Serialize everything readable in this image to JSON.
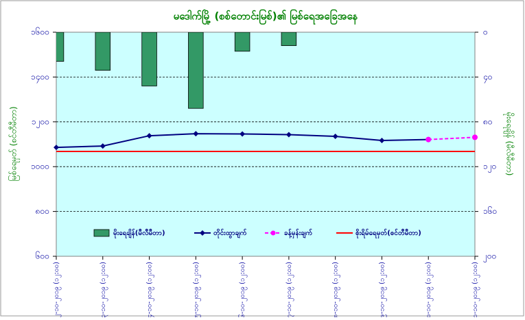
{
  "chart_data": {
    "type": "bar-line",
    "title": "မဒေါက်မြို့ (စစ်တောင်းမြစ်)၏ မြစ်ရေအခြေအနေ",
    "y_label": "မြစ်ရေမှတ် (စင်တီမီတာ)",
    "y2_label": "မိုးရေချိန် (မီလီမီတာ)",
    "categories": [
      "၁၂-၁၀-၂၀၁၉ (၁၂:၀၀)",
      "၁၃-၁၀-၂၀၁၉ (၁၂:၀၀)",
      "၁၄-၁၀-၂၀၁၉ (၁၂:၀၀)",
      "၁၅-၁၀-၂၀၁၉ (၁၂:၀၀)",
      "၁၆-၁၀-၂၀၁၉ (၁၂:၀၀)",
      "၁၇-၁၀-၂၀၁၉ (၁၂:၀၀)",
      "၁၈-၁၀-၂၀၁၉ (၁၂:၀၀)",
      "၁၉-၁၀-၂၀၁၉ (၁၂:၀၀)",
      "၂၀-၁၀-၂၀၁၉ (၁၂:၀၀)",
      "၂၁-၁၀-၂၀၁၉ (၁၂:၀၀)"
    ],
    "ylim": [
      600,
      1600
    ],
    "yticks": [
      {
        "value": 600,
        "label": "၆၀၀"
      },
      {
        "value": 800,
        "label": "၈၀၀"
      },
      {
        "value": 1000,
        "label": "၁၀၀၀"
      },
      {
        "value": 1200,
        "label": "၁၂၀၀"
      },
      {
        "value": 1400,
        "label": "၁၄၀၀"
      },
      {
        "value": 1600,
        "label": "၁၆၀၀"
      }
    ],
    "y2lim": [
      0,
      200
    ],
    "y2_reversed": true,
    "y2ticks": [
      {
        "value": 0,
        "label": "၀"
      },
      {
        "value": 40,
        "label": "၄၀"
      },
      {
        "value": 80,
        "label": "၈၀"
      },
      {
        "value": 120,
        "label": "၁၂၀"
      },
      {
        "value": 160,
        "label": "၁၆၀"
      },
      {
        "value": 200,
        "label": "၂၀၀"
      }
    ],
    "grid": true,
    "series": [
      {
        "name": "မိုးရေချိန်(မီလီမီတာ)",
        "type": "bar",
        "axis": "y2",
        "color": "#339966",
        "values": [
          26,
          34,
          48,
          68,
          17,
          12,
          null,
          null,
          null,
          null
        ]
      },
      {
        "name": "တိုင်းထွာချက်",
        "type": "line",
        "color": "#000080",
        "marker": "diamond",
        "values": [
          1086,
          1092,
          1138,
          1147,
          1146,
          1143,
          1135,
          1117,
          1121,
          null
        ]
      },
      {
        "name": "ခန့်မှန်းချက်",
        "type": "line",
        "color": "#ff00ff",
        "dashed": true,
        "marker": "circle",
        "values": [
          null,
          null,
          null,
          null,
          null,
          null,
          null,
          null,
          1121,
          1131
        ]
      },
      {
        "name": "စိုးရိမ်ရေမှတ်(စင်တီမီတာ)",
        "type": "line",
        "color": "#ff0000",
        "values": [
          1068,
          1068,
          1068,
          1068,
          1068,
          1068,
          1068,
          1068,
          1068,
          1068
        ]
      }
    ]
  }
}
